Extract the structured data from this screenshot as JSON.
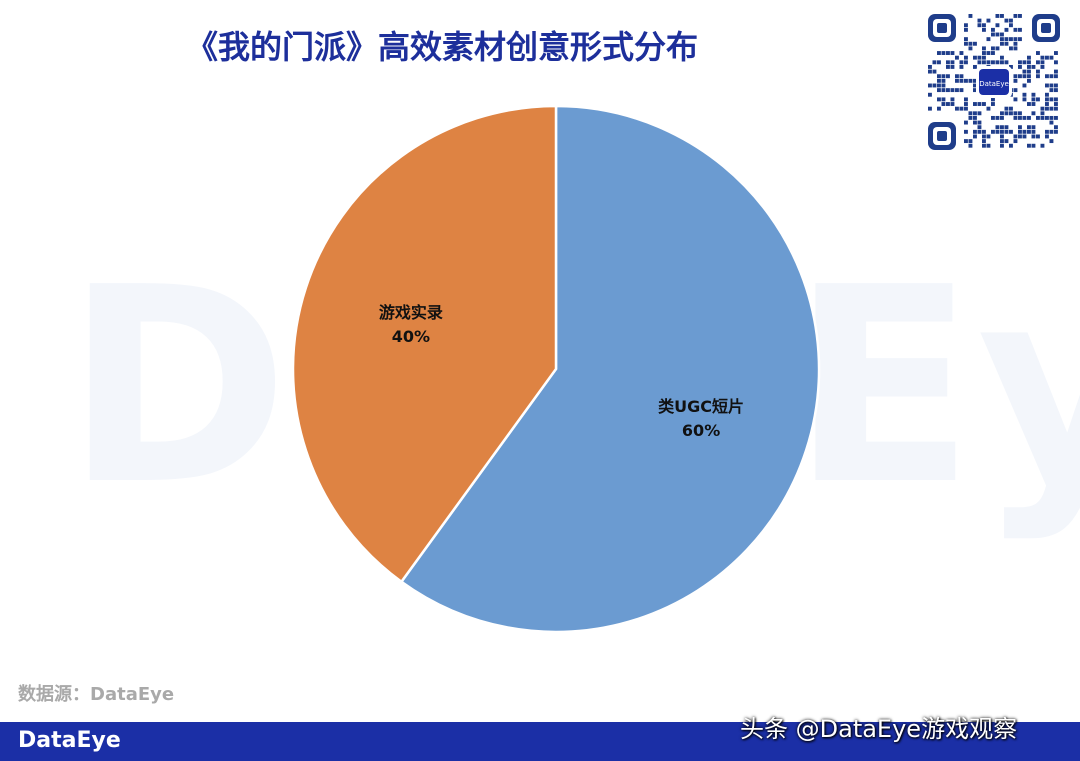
{
  "title": "《我的门派》高效素材创意形式分布",
  "watermark_text": "DataEye",
  "qr_logo_text": "DataEye",
  "source_text": "数据源：DataEye",
  "footer": {
    "brand": "DataEye",
    "credit": "头条 @DataEye游戏观察"
  },
  "colors": {
    "title": "#1d2f9b",
    "footer_bar": "#1b2fa6",
    "slice_ugc": "#6b9bd1",
    "slice_gameplay": "#de8343"
  },
  "chart_data": {
    "type": "pie",
    "title": "《我的门派》高效素材创意形式分布",
    "slices": [
      {
        "label": "类UGC短片",
        "value": 60,
        "value_label": "60%",
        "color": "#6b9bd1"
      },
      {
        "label": "游戏实录",
        "value": 40,
        "value_label": "40%",
        "color": "#de8343"
      }
    ],
    "start": "12 o'clock",
    "direction": "clockwise",
    "legend": "none"
  }
}
